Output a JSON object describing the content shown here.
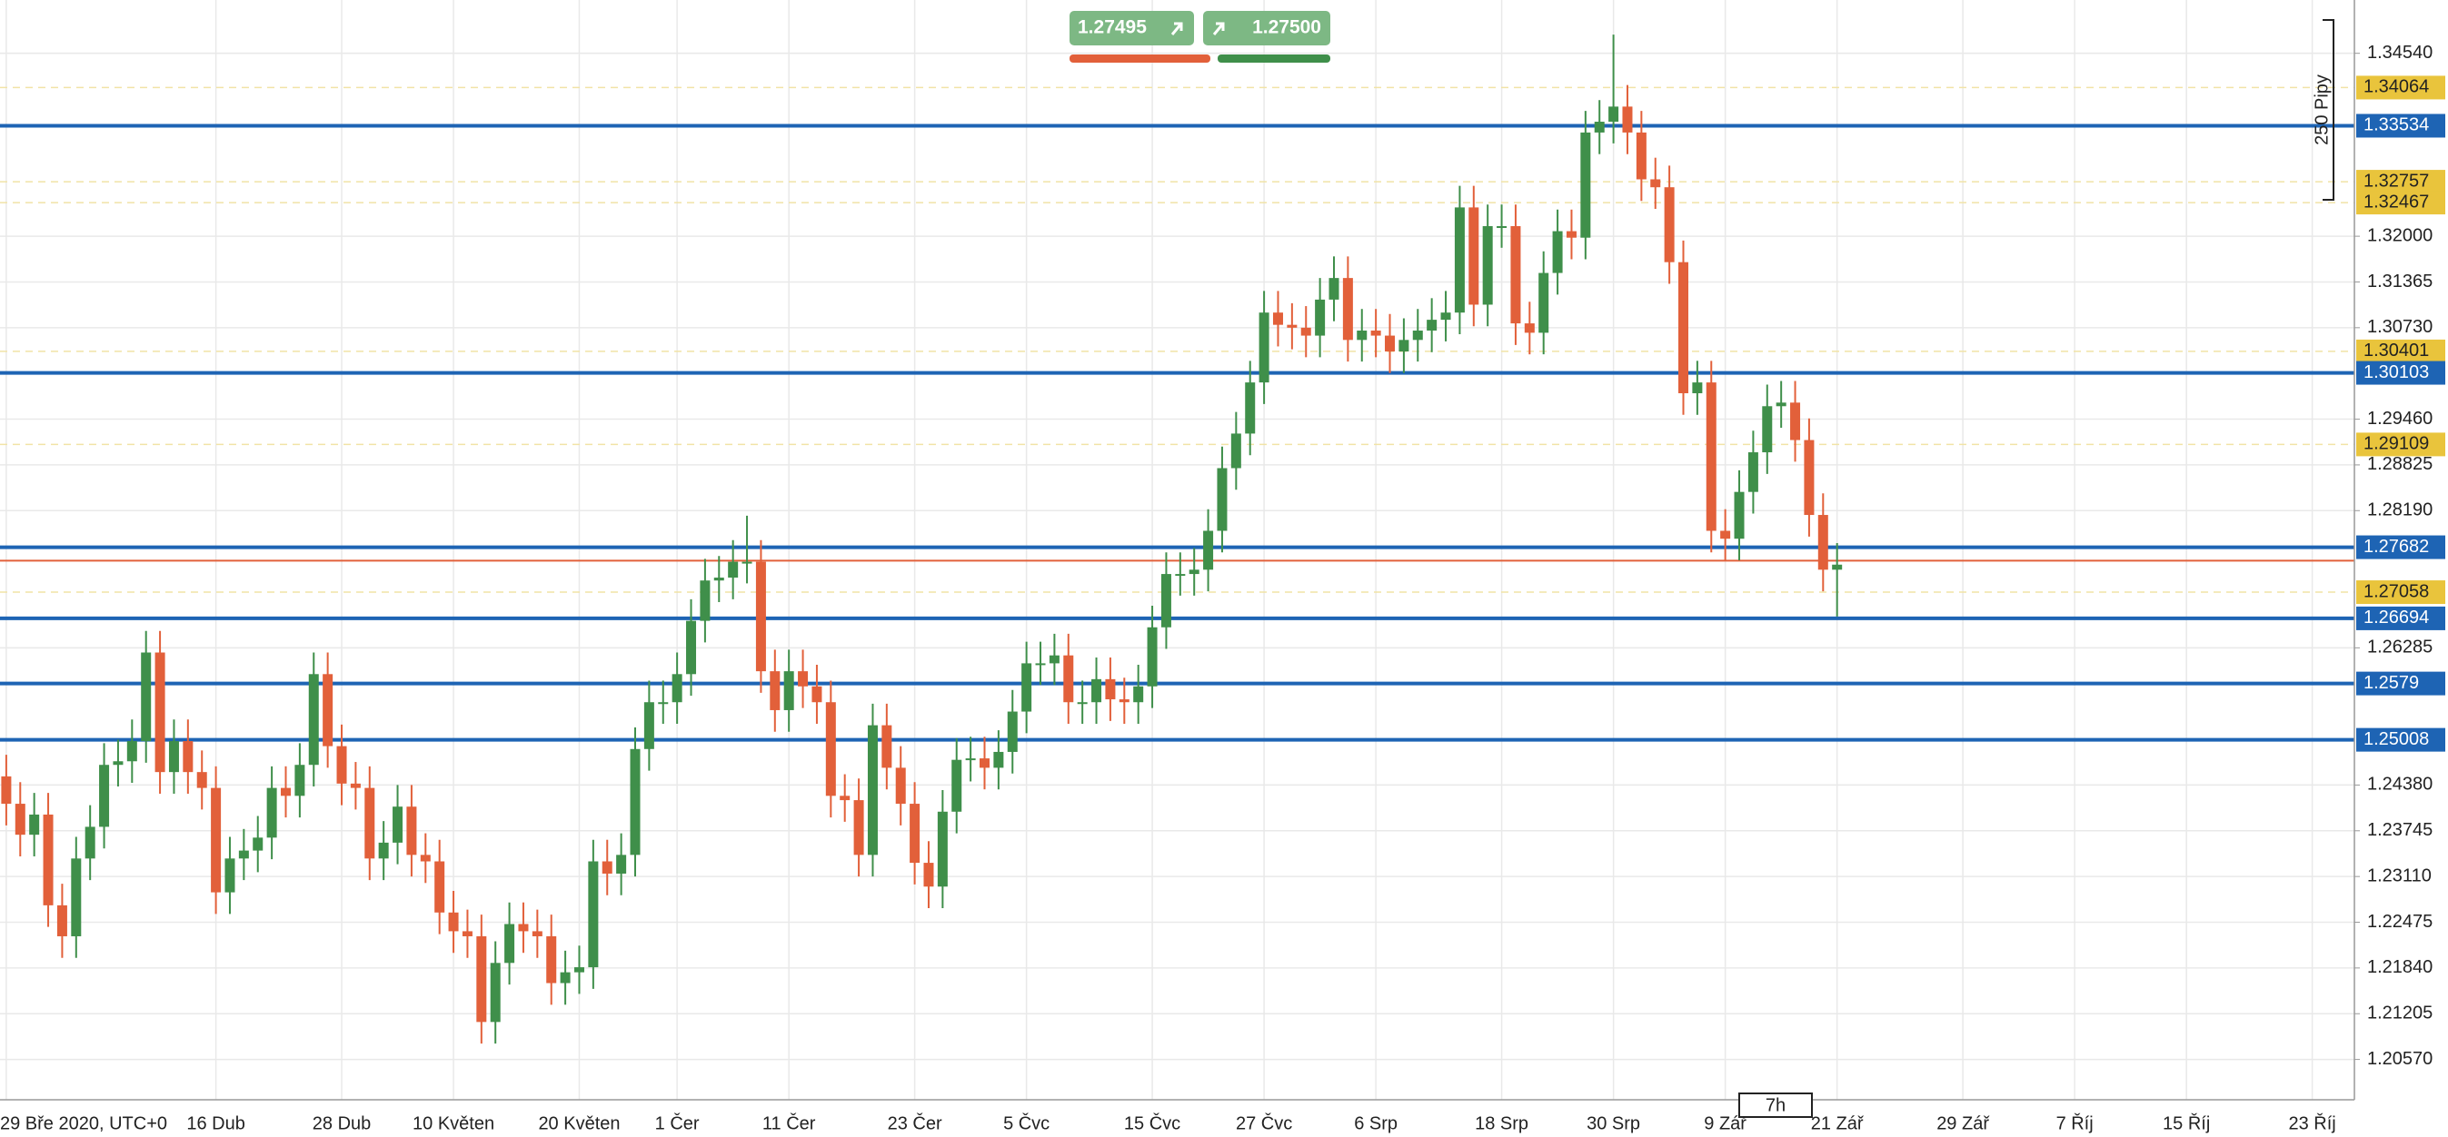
{
  "chart_data": {
    "type": "candlestick",
    "categories": [
      "29 Bře 2020, UTC+0",
      null,
      null,
      null,
      null,
      null,
      null,
      null,
      null,
      null,
      null,
      null,
      null,
      null,
      null,
      "16 Dub",
      null,
      null,
      null,
      null,
      null,
      null,
      null,
      null,
      "28 Dub",
      null,
      null,
      null,
      null,
      null,
      null,
      null,
      "10 Květen",
      null,
      null,
      null,
      null,
      null,
      null,
      null,
      null,
      "20 Květen",
      null,
      null,
      null,
      null,
      null,
      null,
      "1 Čer",
      null,
      null,
      null,
      null,
      null,
      null,
      null,
      "11 Čer",
      null,
      null,
      null,
      null,
      null,
      null,
      null,
      null,
      "23 Čer",
      null,
      null,
      null,
      null,
      null,
      null,
      null,
      "5 Čvc",
      null,
      null,
      null,
      null,
      null,
      null,
      null,
      null,
      "15 Čvc",
      null,
      null,
      null,
      null,
      null,
      null,
      null,
      "27 Čvc",
      null,
      null,
      null,
      null,
      null,
      null,
      null,
      "6 Srp",
      null,
      null,
      null,
      null,
      null,
      null,
      null,
      null,
      "18 Srp",
      null,
      null,
      null,
      null,
      null,
      null,
      null,
      "30 Srp",
      null,
      null,
      null,
      null,
      null,
      null,
      null,
      "9 Zář",
      null,
      null,
      null,
      null,
      null,
      null,
      null,
      "21 Zář",
      null,
      null,
      null,
      null,
      null,
      null,
      null,
      null,
      "29 Zář",
      null,
      null,
      null,
      null,
      null,
      null,
      null,
      "7 Říj",
      null,
      null,
      null,
      null,
      null,
      null,
      null,
      "15 Říj",
      null,
      null,
      null,
      null,
      null,
      null,
      null,
      null,
      "23 Říj"
    ],
    "open": [
      1.245,
      1.2412,
      1.2369,
      1.2397,
      1.2271,
      1.2228,
      1.2336,
      1.238,
      1.2466,
      1.2471,
      1.2499,
      1.2622,
      1.2456,
      1.2499,
      1.2456,
      1.2434,
      1.2289,
      1.2336,
      1.2347,
      1.2365,
      1.2434,
      1.2423,
      1.2466,
      1.2592,
      1.2492,
      1.244,
      1.2434,
      1.2336,
      1.2358,
      1.2408,
      1.2341,
      1.2332,
      1.2261,
      1.2235,
      1.2228,
      1.2109,
      1.2191,
      1.2245,
      1.2235,
      1.2228,
      1.2163,
      1.2178,
      1.2185,
      1.2332,
      1.2315,
      1.2341,
      1.2488,
      1.2553,
      1.2553,
      1.2592,
      1.2666,
      1.2722,
      1.2726,
      1.2748,
      1.2748,
      1.2596,
      1.2542,
      1.2596,
      1.2575,
      1.2553,
      1.2423,
      1.2417,
      1.2341,
      1.2521,
      1.2462,
      1.2412,
      1.233,
      1.2297,
      1.2401,
      1.2473,
      1.2475,
      1.2462,
      1.2484,
      1.254,
      1.2607,
      1.2607,
      1.2618,
      1.2553,
      1.2553,
      1.2585,
      1.2557,
      1.2553,
      1.2575,
      1.2657,
      1.2731,
      1.2731,
      1.2737,
      1.2791,
      1.2878,
      1.2926,
      1.2997,
      1.3094,
      1.3077,
      1.3073,
      1.3062,
      1.3112,
      1.3142,
      1.3056,
      1.3069,
      1.3062,
      1.304,
      1.3056,
      1.3069,
      1.3084,
      1.3094,
      1.324,
      1.3105,
      1.3214,
      1.3214,
      1.3079,
      1.3066,
      1.3149,
      1.3207,
      1.3198,
      1.3344,
      1.3359,
      1.338,
      1.3344,
      1.3279,
      1.3268,
      1.3164,
      1.2982,
      1.2997,
      1.2791,
      1.278,
      1.2845,
      1.29,
      1.2964,
      1.2969,
      1.2917,
      1.2813,
      1.2737,
      null,
      null,
      null,
      null,
      null,
      null,
      null,
      null,
      null,
      null,
      null,
      null,
      null,
      null,
      null,
      null,
      null,
      null,
      null,
      null,
      null,
      null,
      null,
      null,
      null,
      null,
      null,
      null,
      null,
      null,
      null,
      null,
      null,
      null
    ],
    "high": [
      1.248,
      1.2442,
      1.2427,
      1.2427,
      1.2301,
      1.2366,
      1.241,
      1.2496,
      1.2501,
      1.2529,
      1.2652,
      1.2652,
      1.2529,
      1.2529,
      1.2486,
      1.2464,
      1.2366,
      1.2377,
      1.2395,
      1.2464,
      1.2464,
      1.2496,
      1.2622,
      1.2622,
      1.2522,
      1.247,
      1.2464,
      1.2388,
      1.2438,
      1.2438,
      1.2371,
      1.2362,
      1.2291,
      1.2265,
      1.2258,
      1.2221,
      1.2275,
      1.2275,
      1.2265,
      1.2258,
      1.2208,
      1.2215,
      1.2362,
      1.2362,
      1.2371,
      1.2518,
      1.2583,
      1.2583,
      1.2622,
      1.2696,
      1.2752,
      1.2756,
      1.2778,
      1.2812,
      1.2778,
      1.2626,
      1.2626,
      1.2626,
      1.2605,
      1.2583,
      1.2453,
      1.2447,
      1.2551,
      1.2551,
      1.2492,
      1.2442,
      1.236,
      1.2431,
      1.2503,
      1.2505,
      1.2505,
      1.2514,
      1.257,
      1.2637,
      1.2637,
      1.2648,
      1.2648,
      1.2583,
      1.2615,
      1.2615,
      1.2587,
      1.2605,
      1.2687,
      1.2761,
      1.2761,
      1.2767,
      1.2821,
      1.2908,
      1.2956,
      1.3027,
      1.3124,
      1.3124,
      1.3107,
      1.3103,
      1.3142,
      1.3172,
      1.3172,
      1.3099,
      1.3099,
      1.3092,
      1.3086,
      1.3099,
      1.3114,
      1.3124,
      1.327,
      1.327,
      1.3244,
      1.3244,
      1.3244,
      1.3109,
      1.3179,
      1.3237,
      1.3237,
      1.3374,
      1.3389,
      1.348,
      1.341,
      1.3374,
      1.3309,
      1.3298,
      1.3194,
      1.3027,
      1.3027,
      1.2821,
      1.2875,
      1.293,
      1.2994,
      1.2999,
      1.2999,
      1.2947,
      1.2843,
      1.2774,
      null,
      null,
      null,
      null,
      null,
      null,
      null,
      null,
      null,
      null,
      null,
      null,
      null,
      null,
      null,
      null,
      null,
      null,
      null,
      null,
      null,
      null,
      null,
      null,
      null,
      null,
      null,
      null,
      null,
      null,
      null,
      null,
      null,
      null
    ],
    "low": [
      1.2382,
      1.2339,
      1.2339,
      1.2241,
      1.2198,
      1.2198,
      1.2306,
      1.235,
      1.2436,
      1.2441,
      1.2469,
      1.2426,
      1.2426,
      1.2426,
      1.2404,
      1.2259,
      1.2259,
      1.2306,
      1.2317,
      1.2335,
      1.2393,
      1.2393,
      1.2436,
      1.2462,
      1.241,
      1.2404,
      1.2306,
      1.2306,
      1.2328,
      1.2311,
      1.2302,
      1.2231,
      1.2205,
      1.2198,
      1.2079,
      1.2079,
      1.2161,
      1.2205,
      1.2198,
      1.2133,
      1.2133,
      1.2148,
      1.2155,
      1.2285,
      1.2285,
      1.2311,
      1.2458,
      1.2523,
      1.2523,
      1.2562,
      1.2636,
      1.2692,
      1.2696,
      1.2718,
      1.2566,
      1.2512,
      1.2512,
      1.2545,
      1.2523,
      1.2393,
      1.2387,
      1.2311,
      1.2311,
      1.2432,
      1.2382,
      1.23,
      1.2267,
      1.2267,
      1.2371,
      1.2443,
      1.2432,
      1.2432,
      1.2454,
      1.251,
      1.2577,
      1.2577,
      1.2523,
      1.2523,
      1.2523,
      1.2527,
      1.2523,
      1.2523,
      1.2545,
      1.2627,
      1.2701,
      1.2701,
      1.2707,
      1.2761,
      1.2848,
      1.2896,
      1.2967,
      1.3047,
      1.3043,
      1.3032,
      1.3032,
      1.3082,
      1.3026,
      1.3026,
      1.3032,
      1.301,
      1.301,
      1.3026,
      1.3039,
      1.3054,
      1.3064,
      1.3075,
      1.3075,
      1.3184,
      1.3049,
      1.3036,
      1.3036,
      1.3119,
      1.3168,
      1.3168,
      1.3314,
      1.3329,
      1.3314,
      1.3249,
      1.3238,
      1.3134,
      1.2952,
      1.2952,
      1.2761,
      1.275,
      1.275,
      1.2815,
      1.287,
      1.2934,
      1.2887,
      1.2783,
      1.2707,
      1.2672,
      null,
      null,
      null,
      null,
      null,
      null,
      null,
      null,
      null,
      null,
      null,
      null,
      null,
      null,
      null,
      null,
      null,
      null,
      null,
      null,
      null,
      null,
      null,
      null,
      null,
      null,
      null,
      null,
      null,
      null,
      null,
      null,
      null,
      null
    ],
    "close": [
      1.2412,
      1.2369,
      1.2397,
      1.2271,
      1.2228,
      1.2336,
      1.238,
      1.2466,
      1.2471,
      1.2499,
      1.2622,
      1.2456,
      1.2499,
      1.2456,
      1.2434,
      1.2289,
      1.2336,
      1.2347,
      1.2365,
      1.2434,
      1.2423,
      1.2466,
      1.2592,
      1.2492,
      1.244,
      1.2434,
      1.2336,
      1.2358,
      1.2408,
      1.2341,
      1.2332,
      1.2261,
      1.2235,
      1.2228,
      1.2109,
      1.2191,
      1.2245,
      1.2235,
      1.2228,
      1.2163,
      1.2178,
      1.2185,
      1.2332,
      1.2315,
      1.2341,
      1.2488,
      1.2553,
      1.2553,
      1.2592,
      1.2666,
      1.2722,
      1.2726,
      1.2748,
      1.2748,
      1.2596,
      1.2542,
      1.2596,
      1.2575,
      1.2553,
      1.2423,
      1.2417,
      1.2341,
      1.2521,
      1.2462,
      1.2412,
      1.233,
      1.2297,
      1.2401,
      1.2473,
      1.2475,
      1.2462,
      1.2484,
      1.254,
      1.2607,
      1.2607,
      1.2618,
      1.2553,
      1.2553,
      1.2585,
      1.2557,
      1.2553,
      1.2575,
      1.2657,
      1.2731,
      1.2731,
      1.2737,
      1.2791,
      1.2878,
      1.2926,
      1.2997,
      1.3094,
      1.3077,
      1.3073,
      1.3062,
      1.3112,
      1.3142,
      1.3056,
      1.3069,
      1.3062,
      1.304,
      1.3056,
      1.3069,
      1.3084,
      1.3094,
      1.324,
      1.3105,
      1.3214,
      1.3214,
      1.3079,
      1.3066,
      1.3149,
      1.3207,
      1.3198,
      1.3344,
      1.3359,
      1.338,
      1.3344,
      1.3279,
      1.3268,
      1.3164,
      1.2982,
      1.2997,
      1.2791,
      1.278,
      1.2845,
      1.29,
      1.2964,
      1.2969,
      1.2917,
      1.2813,
      1.2737,
      1.2744,
      null,
      null,
      null,
      null,
      null,
      null,
      null,
      null,
      null,
      null,
      null,
      null,
      null,
      null,
      null,
      null,
      null,
      null,
      null,
      null,
      null,
      null,
      null,
      null,
      null,
      null,
      null,
      null,
      null,
      null,
      null,
      null,
      null,
      null
    ],
    "up_color": "#3f8f4a",
    "down_color": "#e2603a",
    "ylim": [
      1.2001,
      1.3528
    ],
    "yticks": [
      {
        "value": 1.3454,
        "label": "1.34540"
      },
      {
        "value": 1.32,
        "label": "1.32000"
      },
      {
        "value": 1.31365,
        "label": "1.31365"
      },
      {
        "value": 1.3073,
        "label": "1.30730"
      },
      {
        "value": 1.2946,
        "label": "1.29460"
      },
      {
        "value": 1.28825,
        "label": "1.28825"
      },
      {
        "value": 1.2819,
        "label": "1.28190"
      },
      {
        "value": 1.26285,
        "label": "1.26285"
      },
      {
        "value": 1.2438,
        "label": "1.24380"
      },
      {
        "value": 1.23745,
        "label": "1.23745"
      },
      {
        "value": 1.2311,
        "label": "1.23110"
      },
      {
        "value": 1.22475,
        "label": "1.22475"
      },
      {
        "value": 1.2184,
        "label": "1.21840"
      },
      {
        "value": 1.21205,
        "label": "1.21205"
      },
      {
        "value": 1.2057,
        "label": "1.20570"
      }
    ],
    "grid": true,
    "levels": [
      1.33534,
      1.30103,
      1.27682,
      1.26694,
      1.2579,
      1.25008
    ],
    "level_color": "#1e64b4",
    "markers": [
      1.34064,
      1.32757,
      1.32467,
      1.30401,
      1.29109,
      1.27058
    ],
    "marker_color": "#e9c43c",
    "sell": 1.27495,
    "buy": {
      "value": 1.275,
      "label": "1.27500"
    },
    "range_label": "250 Pipy",
    "cursor_label": "7h"
  }
}
